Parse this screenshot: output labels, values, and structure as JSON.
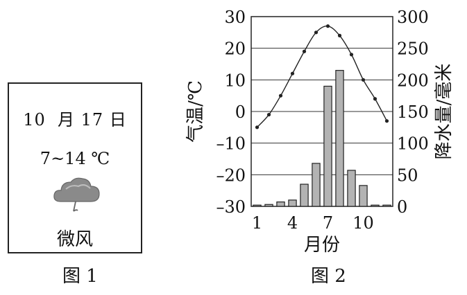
{
  "figure1": {
    "date": "10  月 17 日",
    "temperature": "7~14 ℃",
    "weather_icon": "cloud-rain-icon",
    "wind": "微风",
    "caption": "图 1"
  },
  "figure2": {
    "caption": "图 2"
  },
  "chart_data": {
    "type": "bar+line",
    "xlabel": "月份",
    "x_ticks": [
      "1",
      "4",
      "7",
      "10"
    ],
    "x": [
      1,
      2,
      3,
      4,
      5,
      6,
      7,
      8,
      9,
      10,
      11,
      12
    ],
    "temperature": {
      "axis_label": "气温/℃",
      "ylim": [
        -30,
        30
      ],
      "ticks": [
        "30",
        "20",
        "10",
        "0",
        "–10",
        "–20",
        "–30"
      ],
      "values": [
        -5,
        -1,
        5,
        12,
        19,
        25,
        27,
        24,
        18,
        10,
        4,
        -3
      ]
    },
    "precipitation": {
      "axis_label": "降水量/毫米",
      "ylim": [
        0,
        300
      ],
      "ticks": [
        "300",
        "250",
        "200",
        "150",
        "100",
        "50",
        "0"
      ],
      "values": [
        2,
        3,
        7,
        10,
        35,
        68,
        190,
        215,
        57,
        33,
        2,
        2
      ]
    },
    "grid": true,
    "colors": {
      "bar_fill": "#b3b3b3",
      "line": "#222222"
    }
  }
}
